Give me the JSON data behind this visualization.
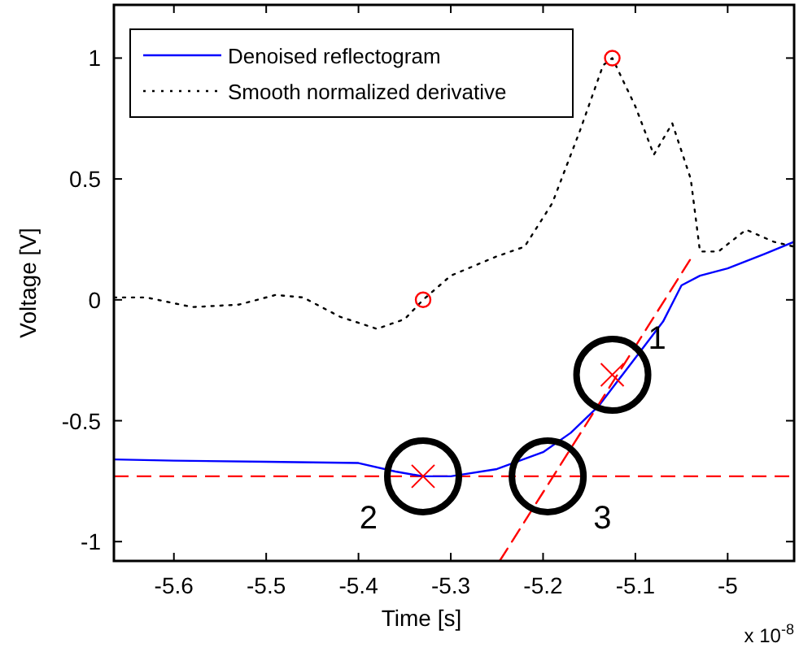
{
  "chart_data": {
    "type": "line",
    "xlabel": "Time [s]",
    "ylabel": "Voltage [V]",
    "xlim": [
      -5.665,
      -4.928
    ],
    "ylim": [
      -1.08,
      1.22
    ],
    "xticks": [
      -5.6,
      -5.5,
      -5.4,
      -5.3,
      -5.2,
      -5.1,
      -5
    ],
    "yticks": [
      -1,
      -0.5,
      0,
      0.5,
      1
    ],
    "grid": false,
    "legend": "top left",
    "marker": "none",
    "series": [
      {
        "name": "Denoised reflectogram",
        "color": "#0000ff",
        "line_style": "solid",
        "x": [
          -5.665,
          -5.6,
          -5.5,
          -5.4,
          -5.36,
          -5.33,
          -5.3,
          -5.25,
          -5.2,
          -5.17,
          -5.14,
          -5.1,
          -5.07,
          -5.05,
          -5.03,
          -5.0,
          -4.96,
          -4.928
        ],
        "values": [
          -0.66,
          -0.665,
          -0.67,
          -0.675,
          -0.71,
          -0.73,
          -0.73,
          -0.7,
          -0.63,
          -0.55,
          -0.44,
          -0.24,
          -0.09,
          0.06,
          0.1,
          0.13,
          0.19,
          0.24
        ]
      },
      {
        "name": "Smooth normalized derivative",
        "color": "#000000",
        "line_style": "dotted",
        "x": [
          -5.665,
          -5.63,
          -5.58,
          -5.53,
          -5.49,
          -5.46,
          -5.42,
          -5.38,
          -5.35,
          -5.33,
          -5.3,
          -5.25,
          -5.22,
          -5.19,
          -5.16,
          -5.135,
          -5.125,
          -5.1,
          -5.08,
          -5.06,
          -5.04,
          -5.03,
          -5.01,
          -4.98,
          -4.95,
          -4.928
        ],
        "values": [
          0.01,
          0.01,
          -0.03,
          -0.02,
          0.02,
          0.01,
          -0.07,
          -0.12,
          -0.08,
          0,
          0.1,
          0.18,
          0.22,
          0.4,
          0.7,
          0.97,
          1,
          0.8,
          0.6,
          0.73,
          0.5,
          0.2,
          0.2,
          0.29,
          0.24,
          0.22
        ]
      },
      {
        "type": "line",
        "color": "#ff0000",
        "line_style": "dashed",
        "x": [
          -5.247,
          -5.04
        ],
        "values": [
          -1.08,
          0.17
        ]
      },
      {
        "type": "scatter",
        "color": "#ff0000",
        "marker": "circle",
        "x": [
          -5.33,
          -5.125
        ],
        "values": [
          0,
          1
        ]
      },
      {
        "type": "scatter",
        "color": "#ff0000",
        "marker": "cross",
        "x": [
          -5.125,
          -5.33
        ],
        "values": [
          -0.31,
          -0.73
        ]
      }
    ],
    "ref_lines": [
      {
        "axis": "y",
        "value": -0.73,
        "color": "#ff0000",
        "line_style": "dashed"
      }
    ],
    "annotations": [
      {
        "text": "1",
        "x": -5.125,
        "y": -0.31
      },
      {
        "text": "2",
        "x": -5.33,
        "y": -0.73
      },
      {
        "text": "3",
        "x": -5.195,
        "y": -0.73
      },
      "x 10$^{-8}$"
    ]
  }
}
